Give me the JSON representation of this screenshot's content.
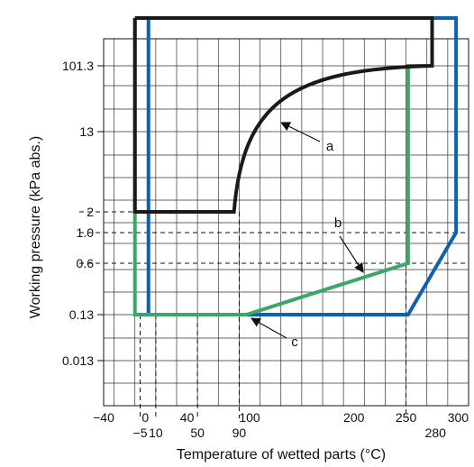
{
  "chart_data": {
    "type": "line",
    "xlabel": "Temperature of wetted parts (°C)",
    "ylabel": "Working pressure (kPa abs.)",
    "xlim": [
      -40,
      310
    ],
    "x_tick_labels": [
      {
        "value": -40,
        "label": "−40",
        "row": 1
      },
      {
        "value": -5,
        "label": "−5",
        "row": 2
      },
      {
        "value": 0,
        "label": "0",
        "row": 1
      },
      {
        "value": 10,
        "label": "10",
        "row": 2
      },
      {
        "value": 40,
        "label": "40",
        "row": 1
      },
      {
        "value": 50,
        "label": "50",
        "row": 2
      },
      {
        "value": 90,
        "label": "90",
        "row": 2
      },
      {
        "value": 100,
        "label": "100",
        "row": 1
      },
      {
        "value": 200,
        "label": "200",
        "row": 1
      },
      {
        "value": 250,
        "label": "250",
        "row": 1
      },
      {
        "value": 280,
        "label": "280",
        "row": 2
      },
      {
        "value": 300,
        "label": "300",
        "row": 1
      }
    ],
    "y_ticks": [
      {
        "key": "p101",
        "label": "101.3"
      },
      {
        "key": "p13",
        "label": "13"
      },
      {
        "key": "p2",
        "label": "2"
      },
      {
        "key": "p1",
        "label": "1.0"
      },
      {
        "key": "p06",
        "label": "0.6"
      },
      {
        "key": "p013",
        "label": "0.13"
      },
      {
        "key": "p0013",
        "label": "0.013"
      }
    ],
    "grid": true,
    "series": [
      {
        "label": "a",
        "color": "#1a1a1a",
        "points": [
          {
            "x": -10,
            "y": "top"
          },
          {
            "x": 275,
            "y": "top"
          },
          {
            "x": 275,
            "y": "p101"
          },
          {
            "x": 85,
            "y": "p2"
          },
          {
            "x": -10,
            "y": "p2"
          },
          {
            "x": -10,
            "y": "top"
          }
        ]
      },
      {
        "label": "b",
        "color": "#3aa764",
        "points": [
          {
            "x": -10,
            "y": "top"
          },
          {
            "x": 275,
            "y": "top"
          },
          {
            "x": 275,
            "y": "p101"
          },
          {
            "x": 252,
            "y": "p101"
          },
          {
            "x": 252,
            "y": "p06"
          },
          {
            "x": 97,
            "y": "p013"
          },
          {
            "x": -10,
            "y": "p013"
          },
          {
            "x": -10,
            "y": "top"
          }
        ]
      },
      {
        "label": "c",
        "color": "#1060b0",
        "points": [
          {
            "x": 3,
            "y": "top"
          },
          {
            "x": 298,
            "y": "top"
          },
          {
            "x": 298,
            "y": "p1"
          },
          {
            "x": 252,
            "y": "p013"
          },
          {
            "x": 3,
            "y": "p013"
          },
          {
            "x": 3,
            "y": "top"
          }
        ]
      }
    ],
    "dashed_guides": {
      "vertical": [
        -5,
        10,
        50,
        90,
        250
      ],
      "horizontal": [
        "p2",
        "p1",
        "p06"
      ]
    },
    "annotations": [
      {
        "text": "a",
        "series": "a"
      },
      {
        "text": "b",
        "series": "b"
      },
      {
        "text": "c",
        "series": "c"
      }
    ]
  }
}
